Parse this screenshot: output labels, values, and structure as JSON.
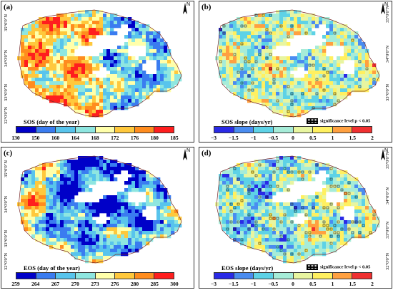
{
  "panels": [
    {
      "id": "a",
      "label": "(a)",
      "kind": "value",
      "legend_title": "SOS (day of the year)",
      "ticks": [
        "130",
        "150",
        "160",
        "164",
        "168",
        "172",
        "176",
        "180",
        "185"
      ],
      "colors": [
        "#0000c8",
        "#3a7cf0",
        "#58c4ec",
        "#8ee6e0",
        "#ffffaa",
        "#ffc83c",
        "#ff8c1e",
        "#ff1e1e"
      ],
      "lat_labels": [
        "35°0'0\"N",
        "34°0'0\"N",
        "33°0'0\"N",
        "32°0'0\"N"
      ]
    },
    {
      "id": "b",
      "label": "(b)",
      "kind": "slope",
      "legend_title": "SOS slope (days/yr)",
      "sig_text": "significance level  p < 0.05",
      "ticks": [
        "−3",
        "−1.5",
        "−1",
        "−0.5",
        "0",
        "0.5",
        "1",
        "1.5",
        "2"
      ],
      "colors": [
        "#2a2ae6",
        "#4a8cf0",
        "#5ed2e6",
        "#a6ecd8",
        "#e8f5a0",
        "#fff060",
        "#ffa040",
        "#f03030"
      ],
      "lat_labels": [
        "35°0'0\"N",
        "34°0'0\"N",
        "33°0'0\"N"
      ]
    },
    {
      "id": "c",
      "label": "(c)",
      "kind": "value",
      "legend_title": "EOS (day of the year)",
      "ticks": [
        "259",
        "264",
        "267",
        "270",
        "273",
        "276",
        "280",
        "285",
        "300"
      ],
      "colors": [
        "#0000c8",
        "#3a7cf0",
        "#58c4ec",
        "#8ee6e0",
        "#ffffaa",
        "#ffc83c",
        "#ff8c1e",
        "#ff1e1e"
      ],
      "lat_labels": [
        "35°0'0\"N",
        "34°0'0\"N",
        "33°0'0\"N",
        "32°0'0\"N"
      ]
    },
    {
      "id": "d",
      "label": "(d)",
      "kind": "slope",
      "legend_title": "EOS slope (days/yr)",
      "sig_text": "significance level  p < 0.05",
      "ticks": [
        "−3",
        "−1.5",
        "−1",
        "−0.5",
        "0",
        "0.5",
        "1",
        "1.5",
        "2"
      ],
      "colors": [
        "#2a2ae6",
        "#4a8cf0",
        "#5ed2e6",
        "#a6ecd8",
        "#e8f5a0",
        "#fff060",
        "#ffa040",
        "#f03030"
      ],
      "lat_labels": [
        "35°0'0\"N",
        "34°0'0\"N",
        "33°0'0\"N",
        "32°0'0\"N"
      ]
    }
  ],
  "north_label": "N"
}
